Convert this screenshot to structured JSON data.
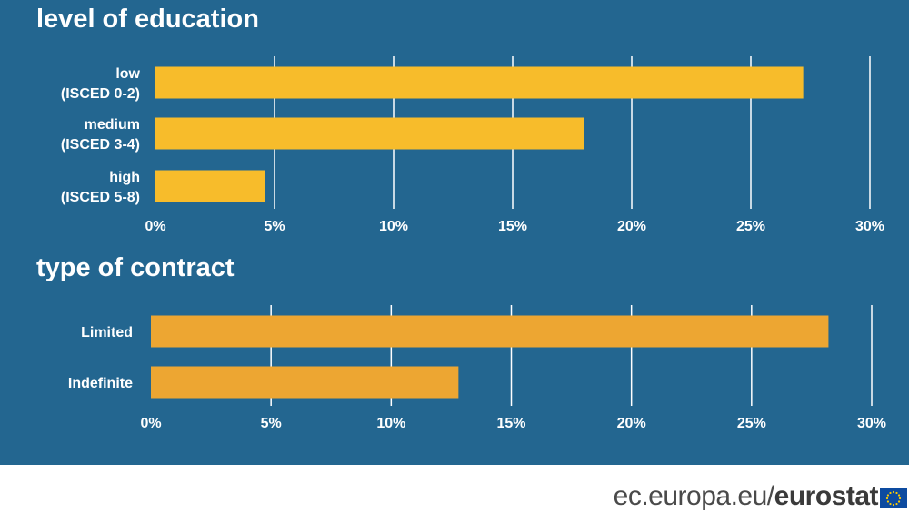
{
  "chart_data": [
    {
      "type": "bar",
      "orientation": "horizontal",
      "title": "level of education",
      "categories": [
        [
          "low",
          "(ISCED 0-2)"
        ],
        [
          "medium",
          "(ISCED 3-4)"
        ],
        [
          "high",
          "(ISCED 5-8)"
        ]
      ],
      "values": [
        27.2,
        18.0,
        4.6
      ],
      "xlim": [
        0,
        30
      ],
      "ticks": [
        "0%",
        "5%",
        "10%",
        "15%",
        "20%",
        "25%",
        "30%"
      ],
      "grid": true,
      "bar_color": "#f7bc2b"
    },
    {
      "type": "bar",
      "orientation": "horizontal",
      "title": "type of contract",
      "categories": [
        [
          "Limited"
        ],
        [
          "Indefinite"
        ]
      ],
      "values": [
        28.2,
        12.8
      ],
      "xlim": [
        0,
        30
      ],
      "ticks": [
        "0%",
        "5%",
        "10%",
        "15%",
        "20%",
        "25%",
        "30%"
      ],
      "grid": true,
      "bar_color": "#eda632"
    }
  ],
  "colors": {
    "background": "#236690",
    "text": "#ffffff",
    "footer_background": "#ffffff",
    "flag_blue": "#0d4ba0",
    "flag_stars": "#ffcc00"
  },
  "footer": {
    "site": "ec.europa.eu/",
    "brand": "eurostat",
    "flag_icon": "eu-flag-icon"
  }
}
